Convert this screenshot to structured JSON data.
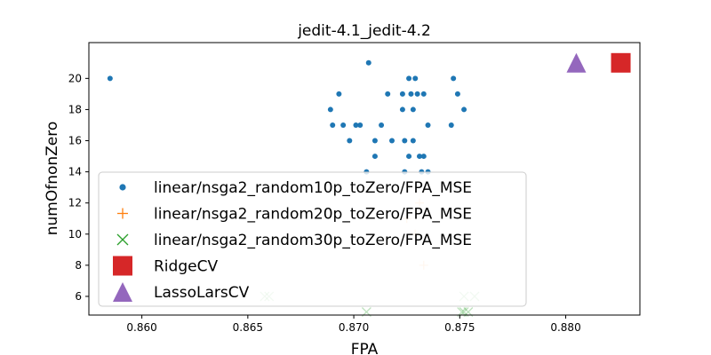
{
  "chart_data": {
    "type": "scatter",
    "title": "jedit-4.1_jedit-4.2",
    "xlabel": "FPA",
    "ylabel": "numOfnonZero",
    "xlim": [
      0.8575,
      0.8835
    ],
    "ylim": [
      4.8,
      22.3
    ],
    "xticks": [
      0.86,
      0.865,
      0.87,
      0.875,
      0.88
    ],
    "xtick_labels": [
      "0.860",
      "0.865",
      "0.870",
      "0.875",
      "0.880"
    ],
    "yticks": [
      6,
      8,
      10,
      12,
      14,
      16,
      18,
      20
    ],
    "ytick_labels": [
      "6",
      "8",
      "10",
      "12",
      "14",
      "16",
      "18",
      "20"
    ],
    "grid": false,
    "legend_position": "lower-left",
    "series": [
      {
        "name": "linear/nsga2_random10p_toZero/FPA_MSE",
        "marker": "dot",
        "color": "#1f77b4",
        "points": [
          [
            0.8585,
            20
          ],
          [
            0.8707,
            21
          ],
          [
            0.8726,
            20
          ],
          [
            0.8729,
            20
          ],
          [
            0.8747,
            20
          ],
          [
            0.8693,
            19
          ],
          [
            0.8716,
            19
          ],
          [
            0.8723,
            19
          ],
          [
            0.8727,
            19
          ],
          [
            0.873,
            19
          ],
          [
            0.8733,
            19
          ],
          [
            0.8749,
            19
          ],
          [
            0.8689,
            18
          ],
          [
            0.8723,
            18
          ],
          [
            0.8728,
            18
          ],
          [
            0.8752,
            18
          ],
          [
            0.869,
            17
          ],
          [
            0.8695,
            17
          ],
          [
            0.8701,
            17
          ],
          [
            0.8703,
            17
          ],
          [
            0.8713,
            17
          ],
          [
            0.8735,
            17
          ],
          [
            0.8746,
            17
          ],
          [
            0.8698,
            16
          ],
          [
            0.871,
            16
          ],
          [
            0.8718,
            16
          ],
          [
            0.8724,
            16
          ],
          [
            0.8728,
            16
          ],
          [
            0.871,
            15
          ],
          [
            0.8726,
            15
          ],
          [
            0.8731,
            15
          ],
          [
            0.8733,
            15
          ],
          [
            0.8706,
            14
          ],
          [
            0.8724,
            14
          ],
          [
            0.8732,
            14
          ],
          [
            0.8735,
            14
          ]
        ]
      },
      {
        "name": "linear/nsga2_random20p_toZero/FPA_MSE",
        "marker": "plus",
        "color": "#ff7f0e",
        "points": [
          [
            0.8733,
            8
          ],
          [
            0.8729,
            10
          ],
          [
            0.8725,
            11
          ],
          [
            0.8731,
            12
          ]
        ]
      },
      {
        "name": "linear/nsga2_random30p_toZero/FPA_MSE",
        "marker": "x",
        "color": "#2ca02c",
        "points": [
          [
            0.8658,
            6
          ],
          [
            0.866,
            6
          ],
          [
            0.8706,
            5
          ],
          [
            0.8752,
            6
          ],
          [
            0.8757,
            6
          ],
          [
            0.8751,
            5
          ],
          [
            0.8754,
            5
          ],
          [
            0.8752,
            5
          ]
        ]
      },
      {
        "name": "RidgeCV",
        "marker": "square",
        "color": "#d62728",
        "points": [
          [
            0.8826,
            21
          ]
        ]
      },
      {
        "name": "LassoLarsCV",
        "marker": "triangle",
        "color": "#9467bd",
        "points": [
          [
            0.8805,
            21
          ]
        ]
      }
    ]
  }
}
